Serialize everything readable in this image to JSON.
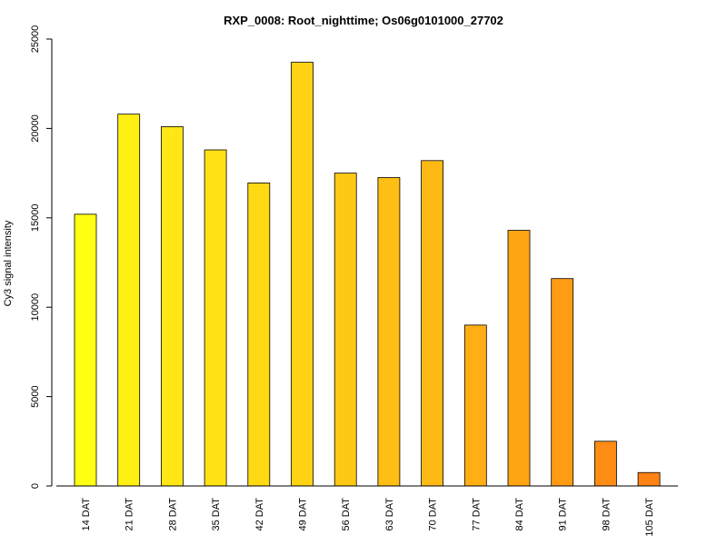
{
  "chart_data": {
    "type": "bar",
    "title": "RXP_0008: Root_nighttime; Os06g0101000_27702",
    "xlabel": "",
    "ylabel": "Cy3 signal intensity",
    "ylim": [
      0,
      25000
    ],
    "yticks": [
      0,
      5000,
      10000,
      15000,
      20000,
      25000
    ],
    "grid": false,
    "categories": [
      "14 DAT",
      "21 DAT",
      "28 DAT",
      "35 DAT",
      "42 DAT",
      "49 DAT",
      "56 DAT",
      "63 DAT",
      "70 DAT",
      "77 DAT",
      "84 DAT",
      "91 DAT",
      "98 DAT",
      "105 DAT"
    ],
    "values": [
      15200,
      20800,
      20100,
      18800,
      16950,
      23700,
      17500,
      17250,
      18200,
      9000,
      14300,
      11600,
      2500,
      750
    ],
    "colors": [
      "#FFFF14",
      "#FFF014",
      "#FFE614",
      "#FFE114",
      "#FFD914",
      "#FFD314",
      "#FFC814",
      "#FFBE14",
      "#FFB914",
      "#FFAF14",
      "#FFA514",
      "#FF9B14",
      "#FF8C14",
      "#FF8214"
    ]
  }
}
